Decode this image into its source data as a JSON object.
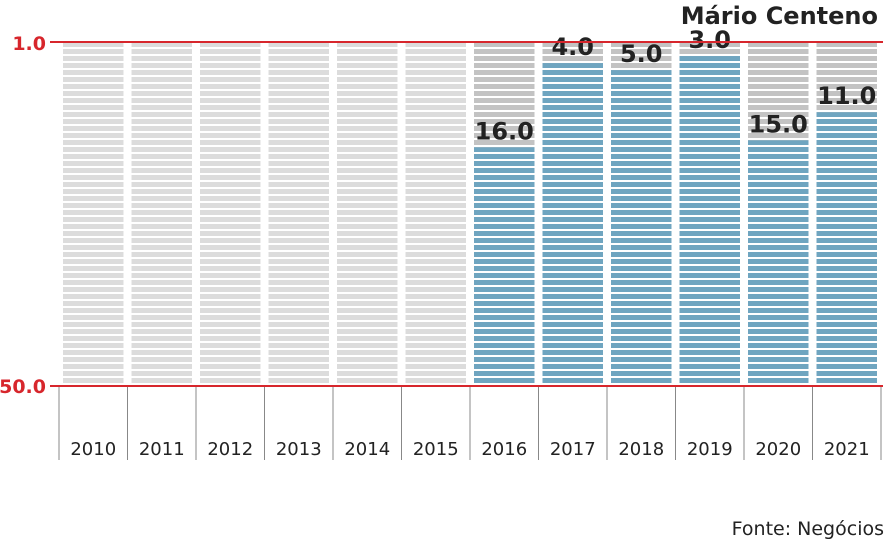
{
  "header": {
    "title": "Mário Centeno"
  },
  "footer": {
    "source": "Fonte: Negócios"
  },
  "chart_data": {
    "type": "bar",
    "title": "Mário Centeno",
    "categories": [
      "2010",
      "2011",
      "2012",
      "2013",
      "2014",
      "2015",
      "2016",
      "2017",
      "2018",
      "2019",
      "2020",
      "2021"
    ],
    "values": [
      null,
      null,
      null,
      null,
      null,
      null,
      16.0,
      4.0,
      5.0,
      3.0,
      15.0,
      11.0
    ],
    "value_labels": [
      "",
      "",
      "",
      "",
      "",
      "",
      "16.0",
      "4.0",
      "5.0",
      "3.0",
      "15.0",
      "11.0"
    ],
    "y_axis": {
      "top_label": "1.0",
      "bottom_label": "50.0",
      "range": [
        1,
        50
      ],
      "inverted": true
    },
    "colors": {
      "bar": "#6fa5c0",
      "empty": "#dcdcdc",
      "unranked": "#c3c3c3",
      "stripe": "#ffffff",
      "axis": "#d7262c",
      "divider": "#888888"
    }
  }
}
